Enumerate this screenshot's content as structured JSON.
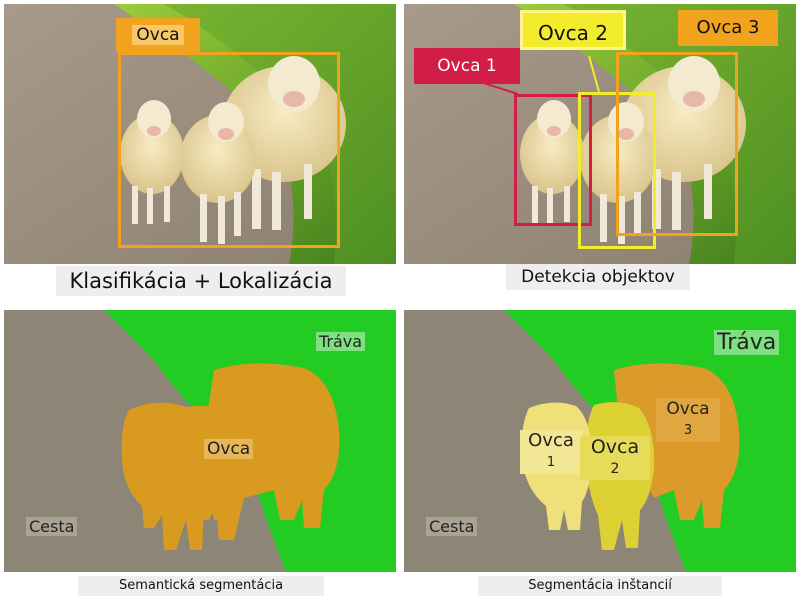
{
  "panels": {
    "classification_localization": {
      "caption": "Klasifikácia + Lokalizácia",
      "label": "Ovca"
    },
    "object_detection": {
      "caption": "Detekcia objektov",
      "labels": [
        "Ovca 1",
        "Ovca 2",
        "Ovca 3"
      ]
    },
    "semantic_segmentation": {
      "caption": "Semantická segmentácia",
      "grass": "Tráva",
      "road": "Cesta",
      "sheep": "Ovca"
    },
    "instance_segmentation": {
      "caption": "Segmentácia inštancií",
      "grass": "Tráva",
      "road": "Cesta",
      "sheep_1": "Ovca",
      "sheep_1_num": "1",
      "sheep_2": "Ovca",
      "sheep_2_num": "2",
      "sheep_3": "Ovca",
      "sheep_3_num": "3"
    }
  },
  "colors": {
    "bbox_orange": "#f2a31e",
    "bbox_red": "#d21d47",
    "bbox_yellow": "#f3ec2d",
    "grass_green": "#22cc22",
    "road_gray": "#8d8677",
    "sheep_semantic": "#d99a20",
    "sheep_inst_1": "#efe07a",
    "sheep_inst_2": "#ddd033",
    "sheep_inst_3": "#dc9a2a"
  }
}
